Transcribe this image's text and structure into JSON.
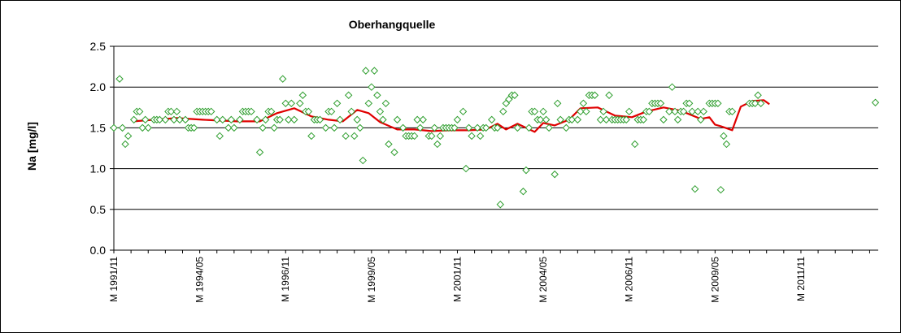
{
  "chart_data": {
    "type": "scatter",
    "title": "Oberhangquelle",
    "ylabel": "Na [mg/l]",
    "xlabel": "",
    "ylim": [
      0,
      2.5
    ],
    "yticks": [
      "0.0",
      "0.5",
      "1.0",
      "1.5",
      "2.0",
      "2.5"
    ],
    "xlim": [
      "1991-11",
      "2014-02"
    ],
    "xticks": [
      {
        "label": "M 1991/11",
        "x": "1991-11"
      },
      {
        "label": "M 1994/05",
        "x": "1994-05"
      },
      {
        "label": "M 1996/11",
        "x": "1996-11"
      },
      {
        "label": "M 1999/05",
        "x": "1999-05"
      },
      {
        "label": "M 2001/11",
        "x": "2001-11"
      },
      {
        "label": "M 2004/05",
        "x": "2004-05"
      },
      {
        "label": "M 2006/11",
        "x": "2006-11"
      },
      {
        "label": "M 2009/05",
        "x": "2009-05"
      },
      {
        "label": "M 2011/11",
        "x": "2011-11"
      }
    ],
    "grid": "horizontal",
    "colors": {
      "points": "#2e9e2e",
      "trend": "#e00000",
      "grid": "#000000"
    },
    "series": [
      {
        "kind": "points",
        "marker": "diamond-open",
        "points": [
          [
            "1991-11",
            1.5
          ],
          [
            "1992-01",
            2.1
          ],
          [
            "1992-02",
            1.5
          ],
          [
            "1992-03",
            1.3
          ],
          [
            "1992-04",
            1.4
          ],
          [
            "1992-06",
            1.6
          ],
          [
            "1992-07",
            1.7
          ],
          [
            "1992-08",
            1.7
          ],
          [
            "1992-09",
            1.5
          ],
          [
            "1992-10",
            1.6
          ],
          [
            "1992-11",
            1.5
          ],
          [
            "1993-01",
            1.6
          ],
          [
            "1993-02",
            1.6
          ],
          [
            "1993-03",
            1.6
          ],
          [
            "1993-05",
            1.6
          ],
          [
            "1993-06",
            1.7
          ],
          [
            "1993-07",
            1.7
          ],
          [
            "1993-08",
            1.6
          ],
          [
            "1993-09",
            1.7
          ],
          [
            "1993-10",
            1.6
          ],
          [
            "1993-12",
            1.6
          ],
          [
            "1994-01",
            1.5
          ],
          [
            "1994-02",
            1.5
          ],
          [
            "1994-03",
            1.5
          ],
          [
            "1994-04",
            1.7
          ],
          [
            "1994-05",
            1.7
          ],
          [
            "1994-06",
            1.7
          ],
          [
            "1994-07",
            1.7
          ],
          [
            "1994-08",
            1.7
          ],
          [
            "1994-09",
            1.7
          ],
          [
            "1994-11",
            1.6
          ],
          [
            "1994-12",
            1.4
          ],
          [
            "1995-01",
            1.6
          ],
          [
            "1995-03",
            1.5
          ],
          [
            "1995-04",
            1.6
          ],
          [
            "1995-05",
            1.5
          ],
          [
            "1995-07",
            1.6
          ],
          [
            "1995-08",
            1.7
          ],
          [
            "1995-09",
            1.7
          ],
          [
            "1995-10",
            1.7
          ],
          [
            "1995-11",
            1.7
          ],
          [
            "1996-01",
            1.6
          ],
          [
            "1996-02",
            1.2
          ],
          [
            "1996-03",
            1.5
          ],
          [
            "1996-04",
            1.6
          ],
          [
            "1996-05",
            1.7
          ],
          [
            "1996-06",
            1.7
          ],
          [
            "1996-07",
            1.5
          ],
          [
            "1996-08",
            1.6
          ],
          [
            "1996-09",
            1.6
          ],
          [
            "1996-10",
            2.1
          ],
          [
            "1996-11",
            1.8
          ],
          [
            "1996-12",
            1.6
          ],
          [
            "1997-01",
            1.8
          ],
          [
            "1997-02",
            1.6
          ],
          [
            "1997-04",
            1.8
          ],
          [
            "1997-05",
            1.9
          ],
          [
            "1997-06",
            1.7
          ],
          [
            "1997-07",
            1.7
          ],
          [
            "1997-08",
            1.4
          ],
          [
            "1997-09",
            1.6
          ],
          [
            "1997-10",
            1.6
          ],
          [
            "1997-11",
            1.6
          ],
          [
            "1998-01",
            1.5
          ],
          [
            "1998-02",
            1.7
          ],
          [
            "1998-03",
            1.7
          ],
          [
            "1998-04",
            1.5
          ],
          [
            "1998-05",
            1.8
          ],
          [
            "1998-06",
            1.6
          ],
          [
            "1998-08",
            1.4
          ],
          [
            "1998-09",
            1.9
          ],
          [
            "1998-10",
            1.7
          ],
          [
            "1998-11",
            1.4
          ],
          [
            "1998-12",
            1.6
          ],
          [
            "1999-01",
            1.5
          ],
          [
            "1999-02",
            1.1
          ],
          [
            "1999-03",
            2.2
          ],
          [
            "1999-04",
            1.8
          ],
          [
            "1999-05",
            2.0
          ],
          [
            "1999-06",
            2.2
          ],
          [
            "1999-07",
            1.9
          ],
          [
            "1999-08",
            1.7
          ],
          [
            "1999-09",
            1.6
          ],
          [
            "1999-10",
            1.8
          ],
          [
            "1999-11",
            1.3
          ],
          [
            "2000-01",
            1.2
          ],
          [
            "2000-02",
            1.6
          ],
          [
            "2000-04",
            1.5
          ],
          [
            "2000-05",
            1.4
          ],
          [
            "2000-06",
            1.4
          ],
          [
            "2000-07",
            1.4
          ],
          [
            "2000-08",
            1.4
          ],
          [
            "2000-09",
            1.6
          ],
          [
            "2000-10",
            1.5
          ],
          [
            "2000-11",
            1.6
          ],
          [
            "2001-01",
            1.4
          ],
          [
            "2001-02",
            1.4
          ],
          [
            "2001-03",
            1.5
          ],
          [
            "2001-04",
            1.3
          ],
          [
            "2001-05",
            1.4
          ],
          [
            "2001-06",
            1.5
          ],
          [
            "2001-07",
            1.5
          ],
          [
            "2001-08",
            1.5
          ],
          [
            "2001-09",
            1.5
          ],
          [
            "2001-10",
            1.5
          ],
          [
            "2001-11",
            1.6
          ],
          [
            "2002-01",
            1.7
          ],
          [
            "2002-02",
            1.0
          ],
          [
            "2002-03",
            1.5
          ],
          [
            "2002-04",
            1.4
          ],
          [
            "2002-06",
            1.5
          ],
          [
            "2002-07",
            1.4
          ],
          [
            "2002-08",
            1.5
          ],
          [
            "2002-09",
            1.5
          ],
          [
            "2002-11",
            1.6
          ],
          [
            "2002-12",
            1.5
          ],
          [
            "2003-01",
            1.5
          ],
          [
            "2003-02",
            0.56
          ],
          [
            "2003-03",
            1.7
          ],
          [
            "2003-04",
            1.8
          ],
          [
            "2003-05",
            1.85
          ],
          [
            "2003-06",
            1.9
          ],
          [
            "2003-07",
            1.9
          ],
          [
            "2003-08",
            1.5
          ],
          [
            "2003-10",
            0.72
          ],
          [
            "2003-11",
            0.98
          ],
          [
            "2003-12",
            1.5
          ],
          [
            "2004-01",
            1.7
          ],
          [
            "2004-02",
            1.7
          ],
          [
            "2004-03",
            1.6
          ],
          [
            "2004-04",
            1.6
          ],
          [
            "2004-05",
            1.7
          ],
          [
            "2004-06",
            1.6
          ],
          [
            "2004-07",
            1.5
          ],
          [
            "2004-09",
            0.93
          ],
          [
            "2004-10",
            1.8
          ],
          [
            "2004-11",
            1.6
          ],
          [
            "2005-01",
            1.5
          ],
          [
            "2005-02",
            1.6
          ],
          [
            "2005-03",
            1.6
          ],
          [
            "2005-05",
            1.6
          ],
          [
            "2005-06",
            1.7
          ],
          [
            "2005-07",
            1.8
          ],
          [
            "2005-08",
            1.7
          ],
          [
            "2005-09",
            1.9
          ],
          [
            "2005-10",
            1.9
          ],
          [
            "2005-11",
            1.9
          ],
          [
            "2006-01",
            1.6
          ],
          [
            "2006-02",
            1.7
          ],
          [
            "2006-03",
            1.6
          ],
          [
            "2006-04",
            1.9
          ],
          [
            "2006-05",
            1.6
          ],
          [
            "2006-06",
            1.6
          ],
          [
            "2006-07",
            1.6
          ],
          [
            "2006-08",
            1.6
          ],
          [
            "2006-09",
            1.6
          ],
          [
            "2006-10",
            1.6
          ],
          [
            "2006-11",
            1.7
          ],
          [
            "2007-01",
            1.3
          ],
          [
            "2007-02",
            1.6
          ],
          [
            "2007-03",
            1.6
          ],
          [
            "2007-04",
            1.6
          ],
          [
            "2007-05",
            1.7
          ],
          [
            "2007-06",
            1.7
          ],
          [
            "2007-07",
            1.8
          ],
          [
            "2007-08",
            1.8
          ],
          [
            "2007-09",
            1.8
          ],
          [
            "2007-10",
            1.8
          ],
          [
            "2007-11",
            1.6
          ],
          [
            "2008-01",
            1.7
          ],
          [
            "2008-02",
            2.0
          ],
          [
            "2008-03",
            1.7
          ],
          [
            "2008-04",
            1.6
          ],
          [
            "2008-05",
            1.7
          ],
          [
            "2008-06",
            1.7
          ],
          [
            "2008-07",
            1.8
          ],
          [
            "2008-08",
            1.8
          ],
          [
            "2008-09",
            1.7
          ],
          [
            "2008-10",
            0.75
          ],
          [
            "2008-11",
            1.7
          ],
          [
            "2008-12",
            1.6
          ],
          [
            "2009-01",
            1.7
          ],
          [
            "2009-03",
            1.8
          ],
          [
            "2009-04",
            1.8
          ],
          [
            "2009-05",
            1.8
          ],
          [
            "2009-06",
            1.8
          ],
          [
            "2009-07",
            0.74
          ],
          [
            "2009-08",
            1.4
          ],
          [
            "2009-09",
            1.3
          ],
          [
            "2009-10",
            1.7
          ],
          [
            "2009-11",
            1.7
          ],
          [
            "2010-05",
            1.8
          ],
          [
            "2010-06",
            1.8
          ],
          [
            "2010-07",
            1.8
          ],
          [
            "2010-08",
            1.9
          ],
          [
            "2010-09",
            1.8
          ],
          [
            "2014-01",
            1.81
          ]
        ]
      },
      {
        "kind": "line",
        "points": [
          [
            "1992-06",
            1.58
          ],
          [
            "1993-01",
            1.6
          ],
          [
            "1993-09",
            1.62
          ],
          [
            "1994-06",
            1.6
          ],
          [
            "1995-06",
            1.58
          ],
          [
            "1996-02",
            1.58
          ],
          [
            "1996-08",
            1.68
          ],
          [
            "1997-02",
            1.74
          ],
          [
            "1997-08",
            1.64
          ],
          [
            "1998-02",
            1.6
          ],
          [
            "1998-07",
            1.58
          ],
          [
            "1998-12",
            1.72
          ],
          [
            "1999-04",
            1.68
          ],
          [
            "1999-08",
            1.57
          ],
          [
            "2000-02",
            1.48
          ],
          [
            "2000-08",
            1.48
          ],
          [
            "2001-02",
            1.46
          ],
          [
            "2001-08",
            1.47
          ],
          [
            "2002-03",
            1.47
          ],
          [
            "2002-09",
            1.48
          ],
          [
            "2003-01",
            1.55
          ],
          [
            "2003-04",
            1.48
          ],
          [
            "2003-08",
            1.55
          ],
          [
            "2004-02",
            1.45
          ],
          [
            "2004-05",
            1.56
          ],
          [
            "2004-09",
            1.53
          ],
          [
            "2005-02",
            1.6
          ],
          [
            "2005-06",
            1.74
          ],
          [
            "2005-12",
            1.75
          ],
          [
            "2006-06",
            1.65
          ],
          [
            "2006-12",
            1.63
          ],
          [
            "2007-05",
            1.7
          ],
          [
            "2007-11",
            1.75
          ],
          [
            "2008-05",
            1.71
          ],
          [
            "2008-12",
            1.61
          ],
          [
            "2009-03",
            1.63
          ],
          [
            "2009-05",
            1.54
          ],
          [
            "2009-07",
            1.52
          ],
          [
            "2009-11",
            1.47
          ],
          [
            "2010-02",
            1.76
          ],
          [
            "2010-06",
            1.83
          ],
          [
            "2010-10",
            1.84
          ],
          [
            "2010-12",
            1.79
          ]
        ]
      }
    ]
  }
}
